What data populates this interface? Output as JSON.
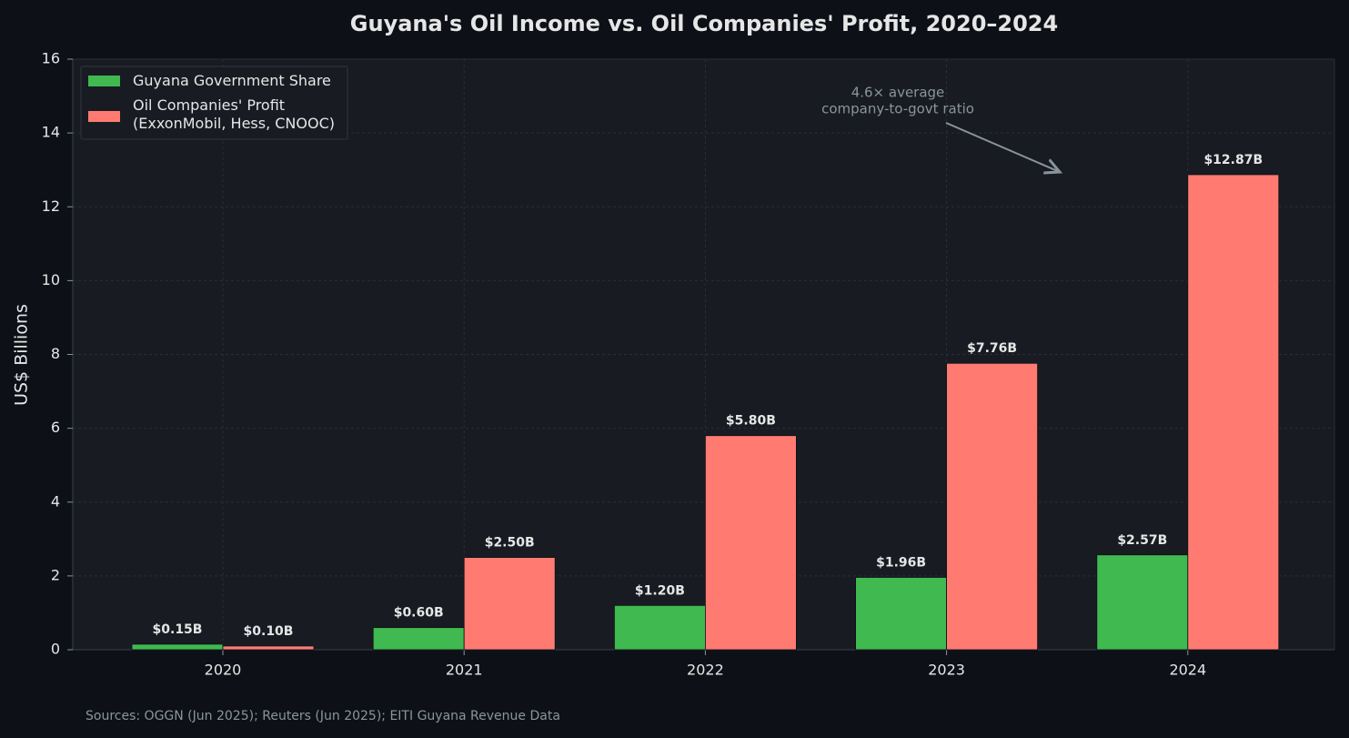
{
  "chart_data": {
    "type": "bar",
    "title": "Guyana's Oil Income vs. Oil Companies' Profit, 2020–2024",
    "y_label": "US$ Billions",
    "categories": [
      "2020",
      "2021",
      "2022",
      "2023",
      "2024"
    ],
    "series": [
      {
        "name": "Guyana Government Share",
        "color": "#3fb950",
        "values": [
          0.15,
          0.6,
          1.2,
          1.96,
          2.57
        ],
        "value_labels": [
          "$0.15B",
          "$0.60B",
          "$1.20B",
          "$1.96B",
          "$2.57B"
        ]
      },
      {
        "name": "Oil Companies' Profit\n(ExxonMobil, Hess, CNOOC)",
        "color": "#ff7b72",
        "values": [
          0.1,
          2.5,
          5.8,
          7.76,
          12.87
        ],
        "value_labels": [
          "$0.10B",
          "$2.50B",
          "$5.80B",
          "$7.76B",
          "$12.87B"
        ]
      }
    ],
    "ylim": [
      0,
      16
    ],
    "yticks": [
      0,
      2,
      4,
      6,
      8,
      10,
      12,
      14,
      16
    ],
    "grid": true,
    "legend": "upper left",
    "annotation": [
      "4.6× average",
      "company-to-govt ratio"
    ],
    "caption": "Sources: OGGN (Jun 2025); Reuters (Jun 2025); EITI Guyana Revenue Data"
  }
}
